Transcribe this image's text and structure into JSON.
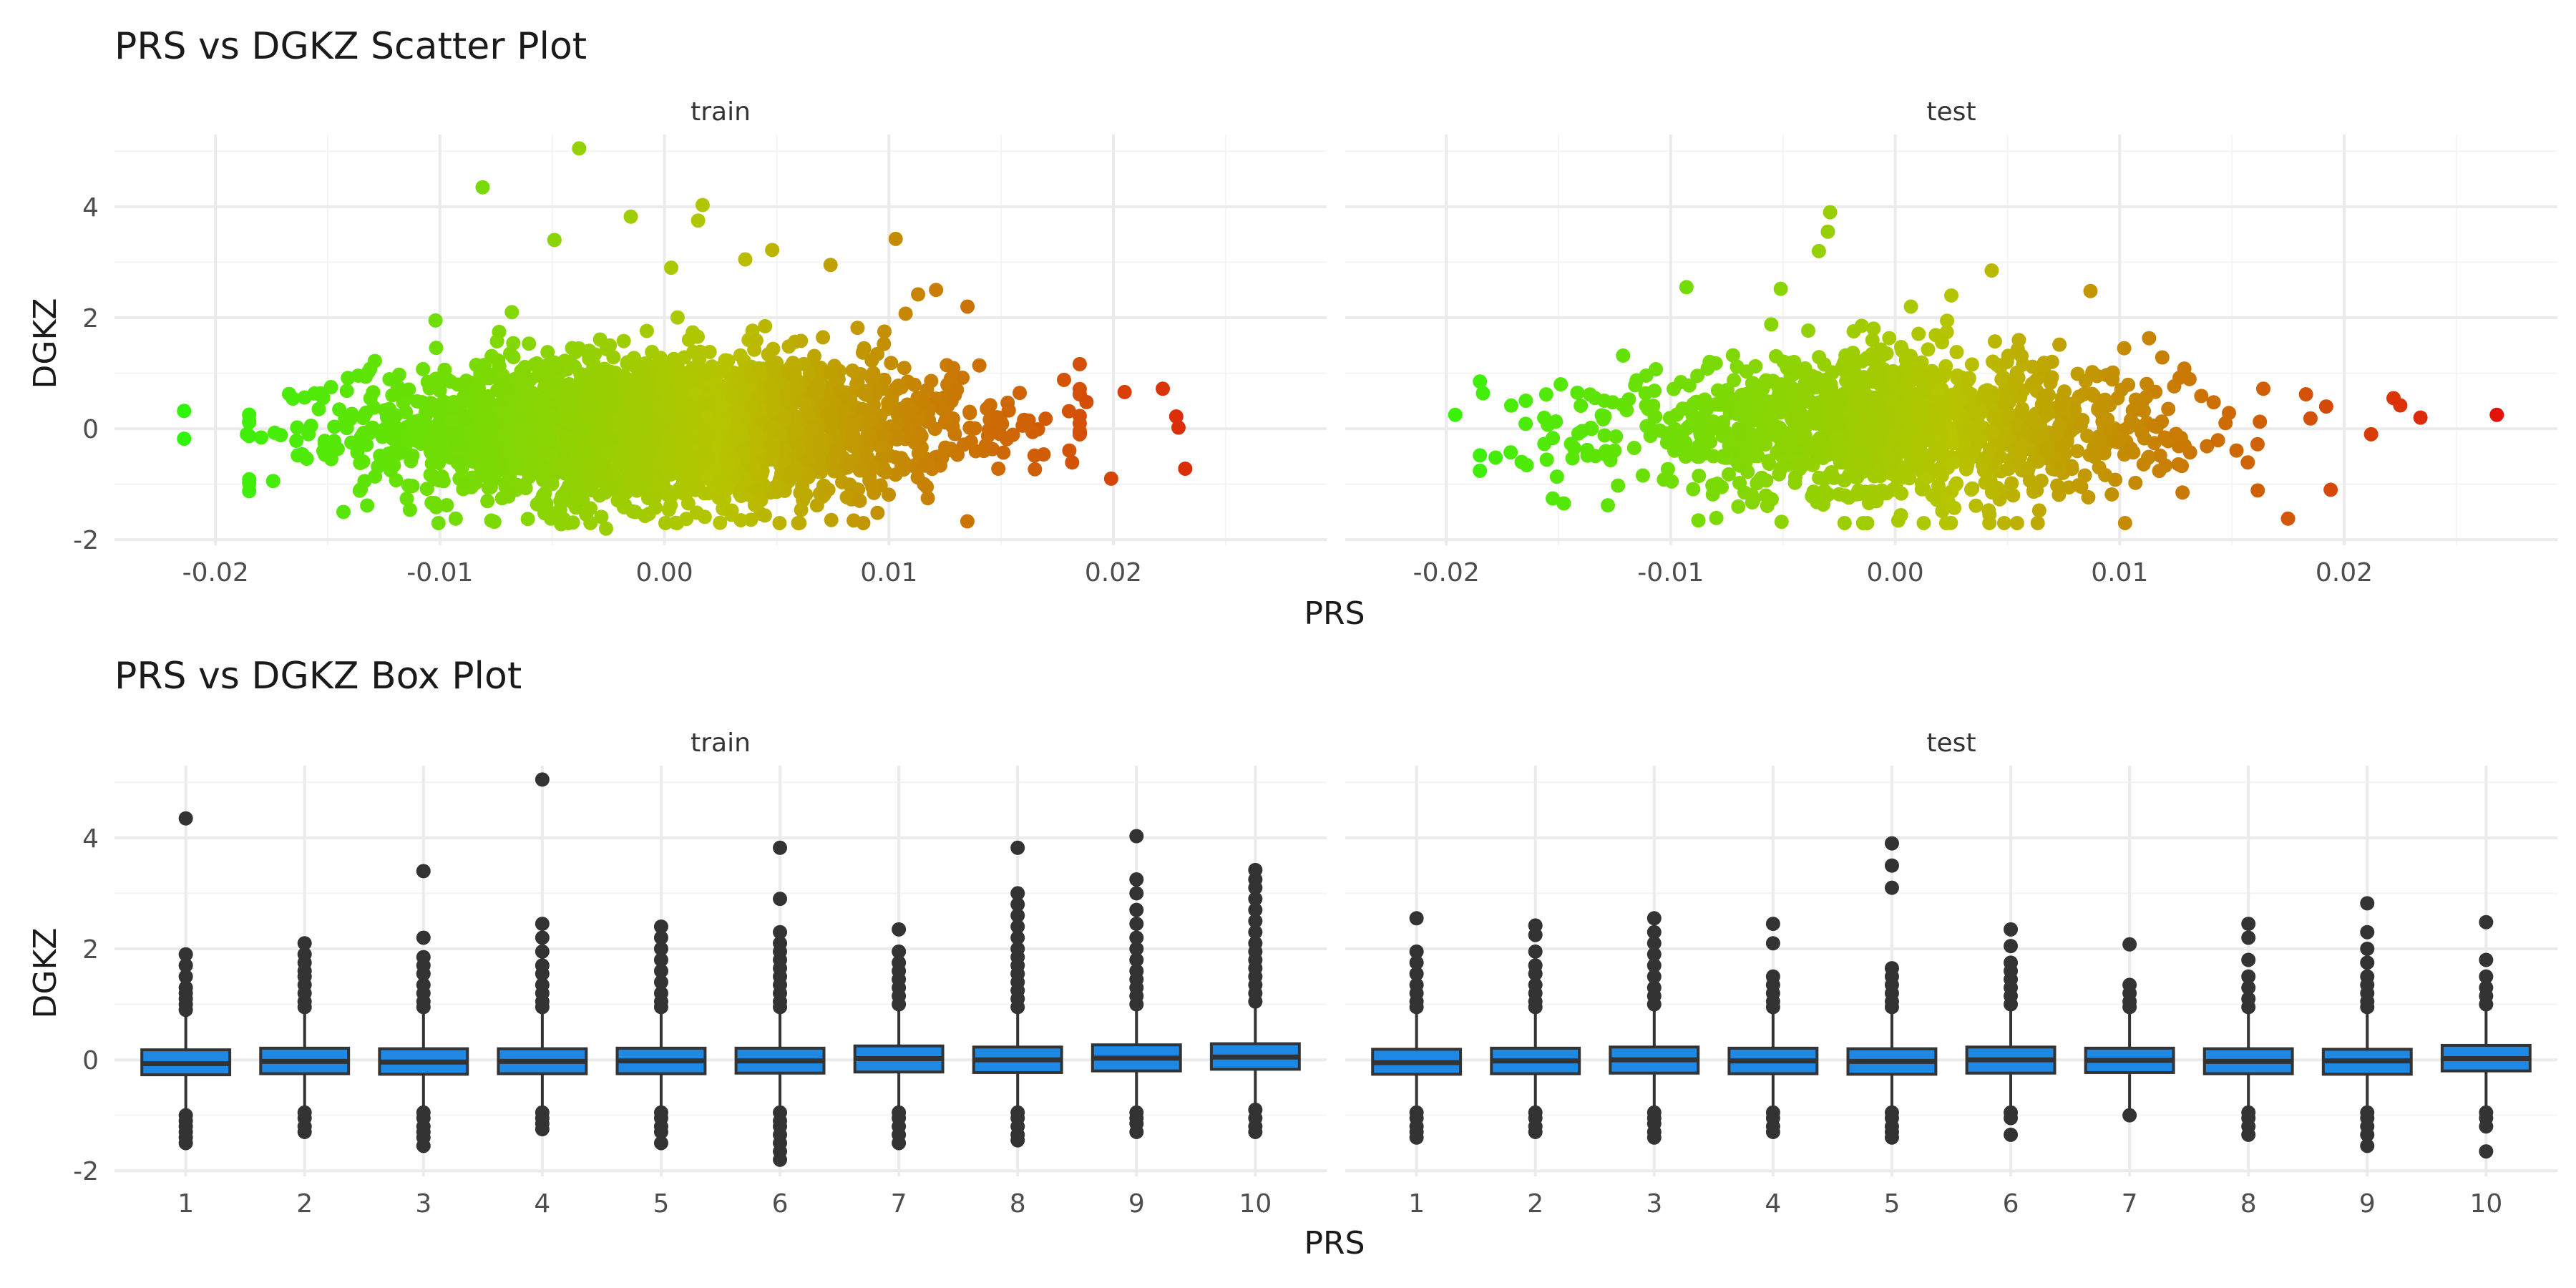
{
  "figure": {
    "scatter_title": "PRS vs DGKZ Scatter Plot",
    "box_title": "PRS vs DGKZ Box Plot"
  },
  "colors": {
    "scatter_low": "#2ff50a",
    "scatter_mid": "#b7c400",
    "scatter_high": "#e3120b",
    "box_fill": "#1e88e5",
    "box_line": "#333333",
    "outlier": "#333333",
    "grid_major": "#ebebeb",
    "grid_minor": "#f4f4f4",
    "text": "#333333",
    "axis_text": "#4d4d4d"
  },
  "chart_data": [
    {
      "type": "scatter",
      "title": "PRS vs DGKZ Scatter Plot",
      "xlabel": "PRS",
      "ylabel": "DGKZ",
      "xlim": [
        -0.0245,
        0.0295
      ],
      "ylim": [
        -2.1,
        5.3
      ],
      "x_ticks": [
        -0.02,
        -0.01,
        0.0,
        0.01,
        0.02
      ],
      "x_tick_labels": [
        "-0.02",
        "-0.01",
        "0.00",
        "0.01",
        "0.02"
      ],
      "y_ticks": [
        -2,
        0,
        2,
        4
      ],
      "y_tick_labels": [
        "-2",
        "0",
        "2",
        "4"
      ],
      "color_scale": "PRS, green (low) to red (high)",
      "grid": true,
      "panels": [
        {
          "name": "train",
          "highlighted_points": [
            [
              -0.0214,
              0.32
            ],
            [
              -0.0214,
              -0.18
            ],
            [
              -0.0081,
              4.35
            ],
            [
              -0.0038,
              5.05
            ],
            [
              -0.0049,
              3.4
            ],
            [
              -0.0015,
              3.82
            ],
            [
              0.0017,
              4.03
            ],
            [
              0.0003,
              2.9
            ],
            [
              0.0015,
              3.75
            ],
            [
              0.0103,
              3.42
            ],
            [
              0.0074,
              2.95
            ],
            [
              0.0048,
              3.22
            ],
            [
              0.0036,
              3.05
            ],
            [
              0.0113,
              2.42
            ],
            [
              0.0135,
              2.2
            ],
            [
              0.0121,
              2.5
            ],
            [
              0.0205,
              0.66
            ],
            [
              0.0222,
              0.72
            ],
            [
              0.0229,
              0.02
            ],
            [
              0.0232,
              -0.72
            ],
            [
              0.0228,
              0.22
            ],
            [
              0.0199,
              -0.9
            ],
            [
              0.0178,
              0.88
            ],
            [
              -0.0186,
              -0.1
            ],
            [
              -0.0143,
              -1.5
            ],
            [
              -0.0093,
              -1.62
            ],
            [
              -0.0046,
              -1.72
            ],
            [
              -0.0026,
              -1.8
            ],
            [
              -0.0129,
              1.22
            ],
            [
              -0.0102,
              1.95
            ],
            [
              -0.0068,
              2.1
            ],
            [
              0.0098,
              1.75
            ],
            [
              0.0164,
              -0.06
            ],
            [
              0.0188,
              0.48
            ],
            [
              -0.0013,
              -1.5
            ],
            [
              0.0087,
              -1.3
            ]
          ],
          "bulk": {
            "n": 2600,
            "x_mean": 0.0,
            "x_sd": 0.0065,
            "y_sd": 0.52,
            "y_mean": 0.0
          }
        },
        {
          "name": "test",
          "highlighted_points": [
            [
              0.0268,
              0.25
            ],
            [
              0.0234,
              0.2
            ],
            [
              0.0222,
              0.55
            ],
            [
              0.0225,
              0.42
            ],
            [
              0.0212,
              -0.1
            ],
            [
              0.0194,
              -1.1
            ],
            [
              0.0175,
              -1.62
            ],
            [
              0.0192,
              0.4
            ],
            [
              -0.0196,
              0.25
            ],
            [
              -0.0178,
              -0.52
            ],
            [
              -0.0143,
              -0.35
            ],
            [
              -0.0128,
              -1.38
            ],
            [
              -0.0029,
              3.9
            ],
            [
              -0.003,
              3.55
            ],
            [
              -0.0034,
              3.2
            ],
            [
              -0.0093,
              2.55
            ],
            [
              -0.0051,
              2.52
            ],
            [
              0.0043,
              2.85
            ],
            [
              0.0087,
              2.48
            ],
            [
              0.0102,
              1.45
            ],
            [
              0.0025,
              2.4
            ],
            [
              0.0042,
              -1.55
            ],
            [
              0.0128,
              -1.15
            ],
            [
              0.0164,
              0.72
            ],
            [
              0.0183,
              0.62
            ],
            [
              -0.0149,
              0.8
            ],
            [
              0.0007,
              2.2
            ]
          ],
          "bulk": {
            "n": 1300,
            "x_mean": 0.0,
            "x_sd": 0.0062,
            "y_sd": 0.5,
            "y_mean": 0.0
          }
        }
      ]
    },
    {
      "type": "box",
      "title": "PRS vs DGKZ Box Plot",
      "xlabel": "PRS",
      "ylabel": "DGKZ",
      "categories": [
        "1",
        "2",
        "3",
        "4",
        "5",
        "6",
        "7",
        "8",
        "9",
        "10"
      ],
      "ylim": [
        -2.1,
        5.3
      ],
      "y_ticks": [
        -2,
        0,
        2,
        4
      ],
      "y_tick_labels": [
        "-2",
        "0",
        "2",
        "4"
      ],
      "grid": true,
      "panels": [
        {
          "name": "train",
          "boxes": [
            {
              "q1": -0.27,
              "median": -0.07,
              "q3": 0.18,
              "whisker_low": -0.93,
              "whisker_high": 0.82
            },
            {
              "q1": -0.25,
              "median": -0.03,
              "q3": 0.21,
              "whisker_low": -0.9,
              "whisker_high": 0.88
            },
            {
              "q1": -0.26,
              "median": -0.04,
              "q3": 0.2,
              "whisker_low": -0.92,
              "whisker_high": 0.87
            },
            {
              "q1": -0.25,
              "median": -0.03,
              "q3": 0.2,
              "whisker_low": -0.9,
              "whisker_high": 0.87
            },
            {
              "q1": -0.25,
              "median": -0.02,
              "q3": 0.21,
              "whisker_low": -0.92,
              "whisker_high": 0.88
            },
            {
              "q1": -0.24,
              "median": -0.02,
              "q3": 0.21,
              "whisker_low": -0.9,
              "whisker_high": 0.88
            },
            {
              "q1": -0.22,
              "median": 0.02,
              "q3": 0.25,
              "whisker_low": -0.92,
              "whisker_high": 0.95
            },
            {
              "q1": -0.23,
              "median": 0.0,
              "q3": 0.23,
              "whisker_low": -0.92,
              "whisker_high": 0.92
            },
            {
              "q1": -0.2,
              "median": 0.03,
              "q3": 0.27,
              "whisker_low": -0.9,
              "whisker_high": 0.97
            },
            {
              "q1": -0.17,
              "median": 0.05,
              "q3": 0.29,
              "whisker_low": -0.85,
              "whisker_high": 1.0
            }
          ],
          "outliers": [
            [
              -1.0,
              -1.1,
              -1.2,
              -1.3,
              -1.4,
              -1.5,
              0.9,
              1.0,
              1.1,
              1.2,
              1.3,
              1.5,
              1.7,
              1.9,
              4.35
            ],
            [
              -0.95,
              -1.05,
              -1.2,
              -1.3,
              0.95,
              1.05,
              1.2,
              1.35,
              1.5,
              1.6,
              1.75,
              1.9,
              2.1
            ],
            [
              -0.95,
              -1.05,
              -1.2,
              -1.3,
              -1.4,
              -1.55,
              0.95,
              1.05,
              1.2,
              1.35,
              1.55,
              1.7,
              1.85,
              2.2,
              3.4
            ],
            [
              -0.95,
              -1.05,
              -1.15,
              -1.25,
              0.95,
              1.05,
              1.2,
              1.35,
              1.55,
              1.7,
              1.95,
              2.2,
              2.45,
              5.05
            ],
            [
              -0.95,
              -1.05,
              -1.2,
              -1.3,
              -1.5,
              0.95,
              1.05,
              1.2,
              1.4,
              1.6,
              1.8,
              2.0,
              2.2,
              2.4
            ],
            [
              -0.95,
              -1.1,
              -1.2,
              -1.35,
              -1.5,
              -1.65,
              -1.8,
              0.95,
              1.05,
              1.2,
              1.35,
              1.5,
              1.65,
              1.8,
              1.95,
              2.1,
              2.3,
              2.9,
              3.82
            ],
            [
              -0.95,
              -1.05,
              -1.2,
              -1.35,
              -1.5,
              1.0,
              1.15,
              1.3,
              1.45,
              1.6,
              1.75,
              1.95,
              2.35
            ],
            [
              -0.95,
              -1.05,
              -1.2,
              -1.35,
              -1.45,
              0.95,
              1.1,
              1.25,
              1.4,
              1.55,
              1.7,
              1.85,
              2.0,
              2.2,
              2.4,
              2.6,
              2.8,
              3.0,
              3.82
            ],
            [
              -0.95,
              -1.05,
              -1.15,
              -1.3,
              1.0,
              1.15,
              1.3,
              1.45,
              1.6,
              1.8,
              2.0,
              2.2,
              2.45,
              2.7,
              3.0,
              3.25,
              4.03
            ],
            [
              -0.9,
              -1.05,
              -1.2,
              -1.3,
              1.05,
              1.2,
              1.35,
              1.5,
              1.65,
              1.8,
              1.95,
              2.1,
              2.3,
              2.5,
              2.7,
              2.9,
              3.1,
              3.25,
              3.42
            ]
          ]
        },
        {
          "name": "test",
          "boxes": [
            {
              "q1": -0.26,
              "median": -0.05,
              "q3": 0.19,
              "whisker_low": -0.9,
              "whisker_high": 0.85
            },
            {
              "q1": -0.25,
              "median": -0.02,
              "q3": 0.21,
              "whisker_low": -0.9,
              "whisker_high": 0.88
            },
            {
              "q1": -0.24,
              "median": 0.0,
              "q3": 0.23,
              "whisker_low": -0.9,
              "whisker_high": 0.92
            },
            {
              "q1": -0.25,
              "median": -0.02,
              "q3": 0.21,
              "whisker_low": -0.88,
              "whisker_high": 0.88
            },
            {
              "q1": -0.26,
              "median": -0.03,
              "q3": 0.2,
              "whisker_low": -0.92,
              "whisker_high": 0.88
            },
            {
              "q1": -0.24,
              "median": 0.0,
              "q3": 0.23,
              "whisker_low": -0.9,
              "whisker_high": 0.92
            },
            {
              "q1": -0.23,
              "median": -0.01,
              "q3": 0.21,
              "whisker_low": -0.88,
              "whisker_high": 0.9
            },
            {
              "q1": -0.25,
              "median": -0.03,
              "q3": 0.2,
              "whisker_low": -0.9,
              "whisker_high": 0.88
            },
            {
              "q1": -0.26,
              "median": -0.02,
              "q3": 0.19,
              "whisker_low": -0.9,
              "whisker_high": 0.85
            },
            {
              "q1": -0.2,
              "median": 0.02,
              "q3": 0.26,
              "whisker_low": -0.85,
              "whisker_high": 0.95
            }
          ],
          "outliers": [
            [
              -0.95,
              -1.05,
              -1.2,
              -1.3,
              -1.4,
              0.95,
              1.05,
              1.2,
              1.35,
              1.55,
              1.75,
              1.95,
              2.55
            ],
            [
              -0.95,
              -1.05,
              -1.2,
              -1.3,
              0.95,
              1.05,
              1.2,
              1.35,
              1.55,
              1.7,
              1.95,
              2.25,
              2.42
            ],
            [
              -0.95,
              -1.05,
              -1.15,
              -1.3,
              -1.4,
              1.0,
              1.15,
              1.3,
              1.5,
              1.7,
              1.9,
              2.1,
              2.3,
              2.55
            ],
            [
              -0.95,
              -1.05,
              -1.2,
              -1.3,
              0.95,
              1.05,
              1.2,
              1.35,
              1.5,
              2.1,
              2.45
            ],
            [
              -0.95,
              -1.05,
              -1.2,
              -1.3,
              -1.4,
              0.95,
              1.05,
              1.2,
              1.35,
              1.5,
              1.65,
              3.1,
              3.5,
              3.9
            ],
            [
              -0.95,
              -1.05,
              -1.35,
              1.0,
              1.15,
              1.3,
              1.45,
              1.6,
              1.75,
              2.05,
              2.35
            ],
            [
              -1.0,
              0.95,
              1.05,
              1.2,
              1.35,
              2.08
            ],
            [
              -0.95,
              -1.05,
              -1.2,
              -1.35,
              0.95,
              1.1,
              1.3,
              1.5,
              1.8,
              2.2,
              2.45
            ],
            [
              -0.95,
              -1.05,
              -1.2,
              -1.35,
              -1.55,
              0.95,
              1.05,
              1.2,
              1.35,
              1.5,
              1.75,
              2.0,
              2.3,
              2.82
            ],
            [
              -0.95,
              -1.05,
              -1.2,
              -1.65,
              1.0,
              1.15,
              1.3,
              1.5,
              1.8,
              2.48
            ]
          ]
        }
      ]
    }
  ]
}
